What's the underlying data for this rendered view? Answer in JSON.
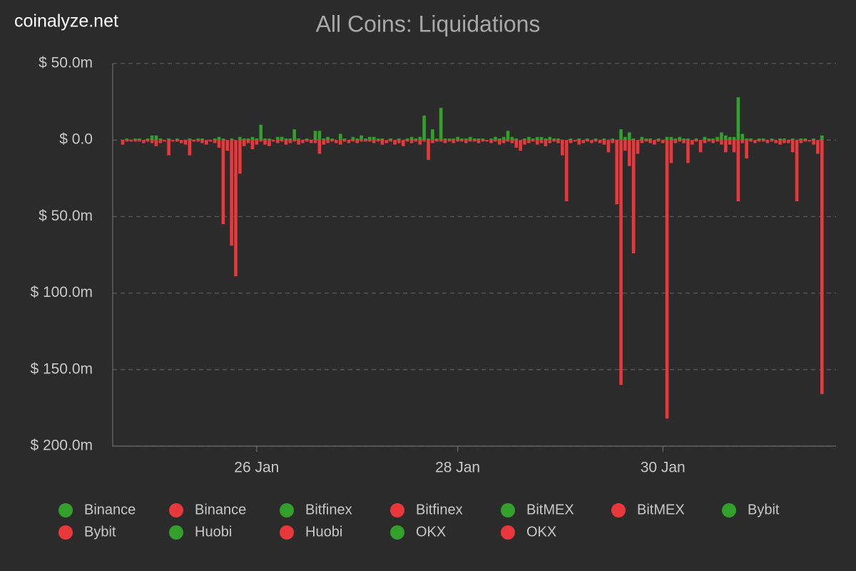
{
  "site": "coinalyze.net",
  "chart_data": {
    "type": "bar",
    "title": "All Coins: Liquidations",
    "categories": [
      null,
      null,
      null,
      null,
      null,
      null,
      null,
      null,
      null,
      null,
      null,
      null,
      null,
      null,
      null,
      null,
      null,
      null,
      null,
      null,
      null,
      null,
      null,
      null,
      null,
      null,
      null,
      null,
      null,
      null,
      null,
      null,
      "26 Jan",
      null,
      null,
      null,
      null,
      null,
      null,
      null,
      null,
      null,
      null,
      null,
      null,
      null,
      null,
      null,
      null,
      null,
      null,
      null,
      null,
      null,
      null,
      null,
      null,
      null,
      null,
      null,
      null,
      null,
      null,
      null,
      null,
      null,
      null,
      null,
      null,
      null,
      null,
      null,
      null,
      null,
      null,
      null,
      null,
      null,
      null,
      null,
      "28 Jan",
      null,
      null,
      null,
      null,
      null,
      null,
      null,
      null,
      null,
      null,
      null,
      null,
      null,
      null,
      null,
      null,
      null,
      null,
      null,
      null,
      null,
      null,
      null,
      null,
      null,
      null,
      null,
      null,
      null,
      null,
      null,
      null,
      null,
      null,
      null,
      null,
      null,
      null,
      null,
      null,
      null,
      null,
      null,
      null,
      null,
      null,
      null,
      null,
      "30 Jan",
      null,
      null,
      null,
      null,
      null,
      null,
      null,
      null,
      null,
      null,
      null,
      null,
      null,
      null,
      null,
      null,
      null,
      null,
      null,
      null,
      null,
      null,
      null,
      null,
      null,
      null,
      null,
      null,
      null,
      null,
      null,
      null,
      null,
      null,
      null,
      null,
      null,
      null
    ],
    "series": [
      {
        "color": "#33a02c",
        "values": [
          0,
          1,
          0,
          1,
          1,
          0,
          1,
          3,
          3,
          1,
          0,
          1,
          0,
          1,
          0,
          0,
          1,
          0,
          1,
          1,
          0,
          0,
          1,
          2,
          1,
          0,
          1,
          0,
          2,
          1,
          1,
          2,
          1,
          10,
          1,
          1,
          0,
          2,
          2,
          1,
          1,
          7,
          1,
          0,
          1,
          0,
          6,
          6,
          1,
          2,
          1,
          0,
          4,
          1,
          0,
          2,
          1,
          3,
          1,
          2,
          2,
          1,
          1,
          0,
          1,
          0,
          1,
          0,
          1,
          2,
          1,
          2,
          16,
          1,
          7,
          1,
          21,
          1,
          1,
          1,
          2,
          1,
          1,
          2,
          1,
          1,
          1,
          0,
          1,
          2,
          1,
          2,
          6,
          2,
          1,
          0,
          1,
          2,
          1,
          2,
          2,
          1,
          2,
          1,
          1,
          0,
          0,
          1,
          0,
          1,
          0,
          1,
          0,
          1,
          0,
          1,
          0,
          1,
          0,
          7,
          2,
          5,
          1,
          0,
          2,
          1,
          1,
          0,
          1,
          0,
          2,
          2,
          1,
          2,
          1,
          1,
          0,
          1,
          0,
          2,
          1,
          1,
          2,
          5,
          3,
          2,
          2,
          28,
          4,
          1,
          1,
          0,
          1,
          1,
          0,
          1,
          0,
          1,
          1,
          0,
          1,
          0,
          1,
          1,
          0,
          1,
          0,
          3
        ]
      },
      {
        "color": "#e8383b",
        "values": [
          -3,
          -1,
          -1,
          -1,
          -1,
          -2,
          -1,
          -2,
          -4,
          -2,
          -1,
          -10,
          -1,
          -1,
          -2,
          -3,
          -10,
          -1,
          -1,
          -2,
          -3,
          -1,
          -2,
          -5,
          -55,
          -7,
          -69,
          -89,
          -22,
          -4,
          -2,
          -6,
          -3,
          -1,
          -3,
          -4,
          -1,
          -2,
          -1,
          -3,
          -2,
          -1,
          -3,
          -2,
          -1,
          -2,
          -2,
          -9,
          -3,
          -2,
          -1,
          -2,
          -3,
          -1,
          -2,
          -1,
          -2,
          -1,
          -1,
          -1,
          -2,
          -1,
          -3,
          -2,
          -1,
          -3,
          -2,
          -4,
          -1,
          -2,
          -1,
          -3,
          -1,
          -13,
          -2,
          -1,
          -1,
          -2,
          -1,
          -2,
          -1,
          -1,
          -2,
          -1,
          -1,
          -2,
          -1,
          -1,
          -2,
          -1,
          -3,
          -2,
          -1,
          -2,
          -5,
          -7,
          -3,
          -2,
          -1,
          -3,
          -2,
          -4,
          -2,
          -1,
          -2,
          -10,
          -40,
          -2,
          -1,
          -3,
          -2,
          -1,
          -2,
          -1,
          -2,
          -3,
          -8,
          -2,
          -42,
          -160,
          -7,
          -17,
          -74,
          -9,
          -2,
          -1,
          -2,
          -3,
          -1,
          -2,
          -182,
          -15,
          -2,
          -1,
          -2,
          -15,
          -3,
          -1,
          -8,
          -2,
          -1,
          -2,
          -1,
          -3,
          -8,
          -3,
          -8,
          -40,
          -2,
          -12,
          -1,
          -2,
          -1,
          -1,
          -2,
          -1,
          -2,
          -3,
          -2,
          -2,
          -8,
          -40,
          -2,
          -1,
          -1,
          -3,
          -9,
          -166
        ]
      }
    ],
    "legend": [
      {
        "name": "Binance",
        "color": "#33a02c"
      },
      {
        "name": "Binance",
        "color": "#e8383b"
      },
      {
        "name": "Bitfinex",
        "color": "#33a02c"
      },
      {
        "name": "Bitfinex",
        "color": "#e8383b"
      },
      {
        "name": "BitMEX",
        "color": "#33a02c"
      },
      {
        "name": "BitMEX",
        "color": "#e8383b"
      },
      {
        "name": "Bybit",
        "color": "#33a02c"
      },
      {
        "name": "Bybit",
        "color": "#e8383b"
      },
      {
        "name": "Huobi",
        "color": "#33a02c"
      },
      {
        "name": "Huobi",
        "color": "#e8383b"
      },
      {
        "name": "OKX",
        "color": "#33a02c"
      },
      {
        "name": "OKX",
        "color": "#e8383b"
      }
    ],
    "ylim": [
      -200,
      50
    ],
    "yticks": [
      {
        "value": 50,
        "label": "$ 50.0m"
      },
      {
        "value": 0,
        "label": "$ 0.0"
      },
      {
        "value": -50,
        "label": "$ 50.0m"
      },
      {
        "value": -100,
        "label": "$ 100.0m"
      },
      {
        "value": -150,
        "label": "$ 150.0m"
      },
      {
        "value": -200,
        "label": "$ 200.0m"
      }
    ],
    "grid": true
  }
}
